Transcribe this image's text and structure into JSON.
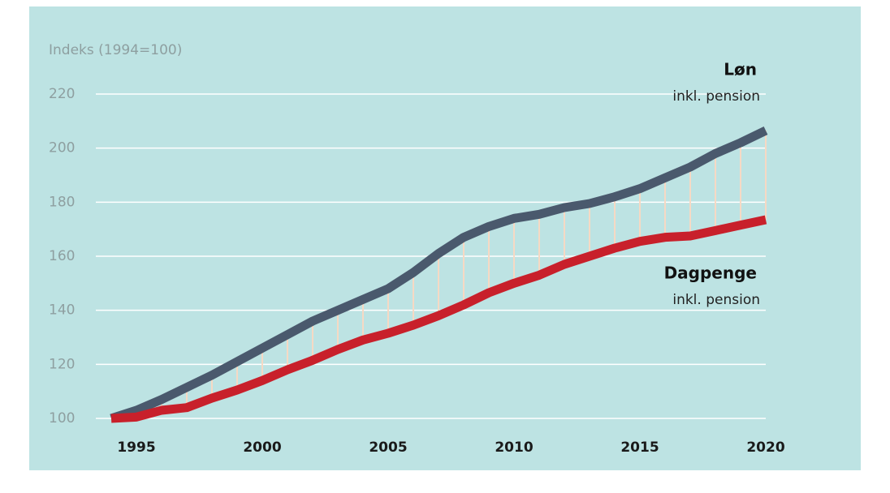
{
  "chart_data": {
    "type": "line",
    "y_label": "Indeks (1994=100)",
    "x": [
      1994,
      1995,
      1996,
      1997,
      1998,
      1999,
      2000,
      2001,
      2002,
      2003,
      2004,
      2005,
      2006,
      2007,
      2008,
      2009,
      2010,
      2011,
      2012,
      2013,
      2014,
      2015,
      2016,
      2017,
      2018,
      2019,
      2020
    ],
    "series": [
      {
        "name": "Løn",
        "note": "inkl. pension",
        "color": "#4a596d",
        "values": [
          100,
          103,
          107,
          111.5,
          116,
          121,
          126,
          131,
          136,
          140,
          144,
          148,
          154,
          161,
          167,
          171,
          174,
          175.5,
          178,
          179.5,
          182,
          185,
          189,
          193,
          198,
          202,
          206.5
        ]
      },
      {
        "name": "Dagpenge",
        "note": "inkl. pension",
        "color": "#c8202b",
        "values": [
          100,
          100.5,
          103,
          104,
          107.5,
          110.5,
          114,
          118,
          121.5,
          125.5,
          129,
          131.5,
          134.5,
          138,
          142,
          146.5,
          150,
          153,
          157,
          160,
          163,
          165.5,
          167,
          167.5,
          169.5,
          171.5,
          173.5
        ]
      }
    ],
    "xlim": [
      1994,
      2020
    ],
    "xticks": [
      1995,
      2000,
      2005,
      2010,
      2015,
      2020
    ],
    "ylim": [
      100,
      220
    ],
    "yticks": [
      100,
      120,
      140,
      160,
      180,
      200,
      220
    ],
    "grid": true,
    "gap_lines": true,
    "gap_color": "#f6d9c4"
  }
}
